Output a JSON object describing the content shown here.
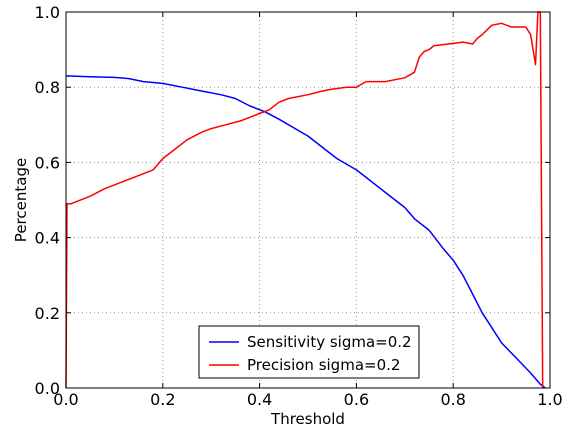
{
  "chart_data": {
    "type": "line",
    "title": "",
    "xlabel": "Threshold",
    "ylabel": "Percentage",
    "xlim": [
      0.0,
      1.0
    ],
    "ylim": [
      0.0,
      1.0
    ],
    "grid": true,
    "legend_position": "lower-center",
    "x_ticks": [
      "0.0",
      "0.2",
      "0.4",
      "0.6",
      "0.8",
      "1.0"
    ],
    "y_ticks": [
      "0.0",
      "0.2",
      "0.4",
      "0.6",
      "0.8",
      "1.0"
    ],
    "series": [
      {
        "name": "Sensitivity sigma=0.2",
        "color": "#0000ff",
        "points": [
          [
            0.0,
            0.83
          ],
          [
            0.05,
            0.828
          ],
          [
            0.1,
            0.826
          ],
          [
            0.13,
            0.823
          ],
          [
            0.16,
            0.815
          ],
          [
            0.2,
            0.81
          ],
          [
            0.24,
            0.8
          ],
          [
            0.28,
            0.79
          ],
          [
            0.32,
            0.78
          ],
          [
            0.35,
            0.77
          ],
          [
            0.38,
            0.75
          ],
          [
            0.41,
            0.735
          ],
          [
            0.44,
            0.715
          ],
          [
            0.46,
            0.7
          ],
          [
            0.5,
            0.67
          ],
          [
            0.53,
            0.64
          ],
          [
            0.56,
            0.61
          ],
          [
            0.6,
            0.58
          ],
          [
            0.62,
            0.56
          ],
          [
            0.66,
            0.52
          ],
          [
            0.7,
            0.48
          ],
          [
            0.72,
            0.45
          ],
          [
            0.75,
            0.42
          ],
          [
            0.78,
            0.37
          ],
          [
            0.8,
            0.34
          ],
          [
            0.82,
            0.3
          ],
          [
            0.84,
            0.25
          ],
          [
            0.86,
            0.2
          ],
          [
            0.88,
            0.16
          ],
          [
            0.9,
            0.12
          ],
          [
            0.93,
            0.08
          ],
          [
            0.96,
            0.04
          ],
          [
            0.98,
            0.01
          ],
          [
            0.99,
            0.0
          ]
        ]
      },
      {
        "name": "Precision sigma=0.2",
        "color": "#ff0000",
        "points": [
          [
            0.0,
            0.0
          ],
          [
            0.002,
            0.49
          ],
          [
            0.01,
            0.49
          ],
          [
            0.05,
            0.51
          ],
          [
            0.08,
            0.53
          ],
          [
            0.12,
            0.55
          ],
          [
            0.15,
            0.565
          ],
          [
            0.18,
            0.58
          ],
          [
            0.2,
            0.61
          ],
          [
            0.22,
            0.63
          ],
          [
            0.25,
            0.66
          ],
          [
            0.28,
            0.68
          ],
          [
            0.3,
            0.69
          ],
          [
            0.33,
            0.7
          ],
          [
            0.36,
            0.71
          ],
          [
            0.38,
            0.72
          ],
          [
            0.4,
            0.73
          ],
          [
            0.42,
            0.74
          ],
          [
            0.44,
            0.76
          ],
          [
            0.46,
            0.77
          ],
          [
            0.5,
            0.78
          ],
          [
            0.53,
            0.79
          ],
          [
            0.55,
            0.795
          ],
          [
            0.58,
            0.8
          ],
          [
            0.6,
            0.8
          ],
          [
            0.62,
            0.815
          ],
          [
            0.66,
            0.815
          ],
          [
            0.68,
            0.82
          ],
          [
            0.7,
            0.825
          ],
          [
            0.72,
            0.84
          ],
          [
            0.73,
            0.88
          ],
          [
            0.74,
            0.895
          ],
          [
            0.75,
            0.9
          ],
          [
            0.76,
            0.91
          ],
          [
            0.79,
            0.915
          ],
          [
            0.82,
            0.92
          ],
          [
            0.84,
            0.915
          ],
          [
            0.85,
            0.93
          ],
          [
            0.86,
            0.94
          ],
          [
            0.88,
            0.965
          ],
          [
            0.9,
            0.97
          ],
          [
            0.92,
            0.96
          ],
          [
            0.95,
            0.96
          ],
          [
            0.96,
            0.94
          ],
          [
            0.97,
            0.86
          ],
          [
            0.975,
            1.0
          ],
          [
            0.98,
            1.0
          ],
          [
            0.985,
            0.0
          ]
        ]
      }
    ]
  }
}
